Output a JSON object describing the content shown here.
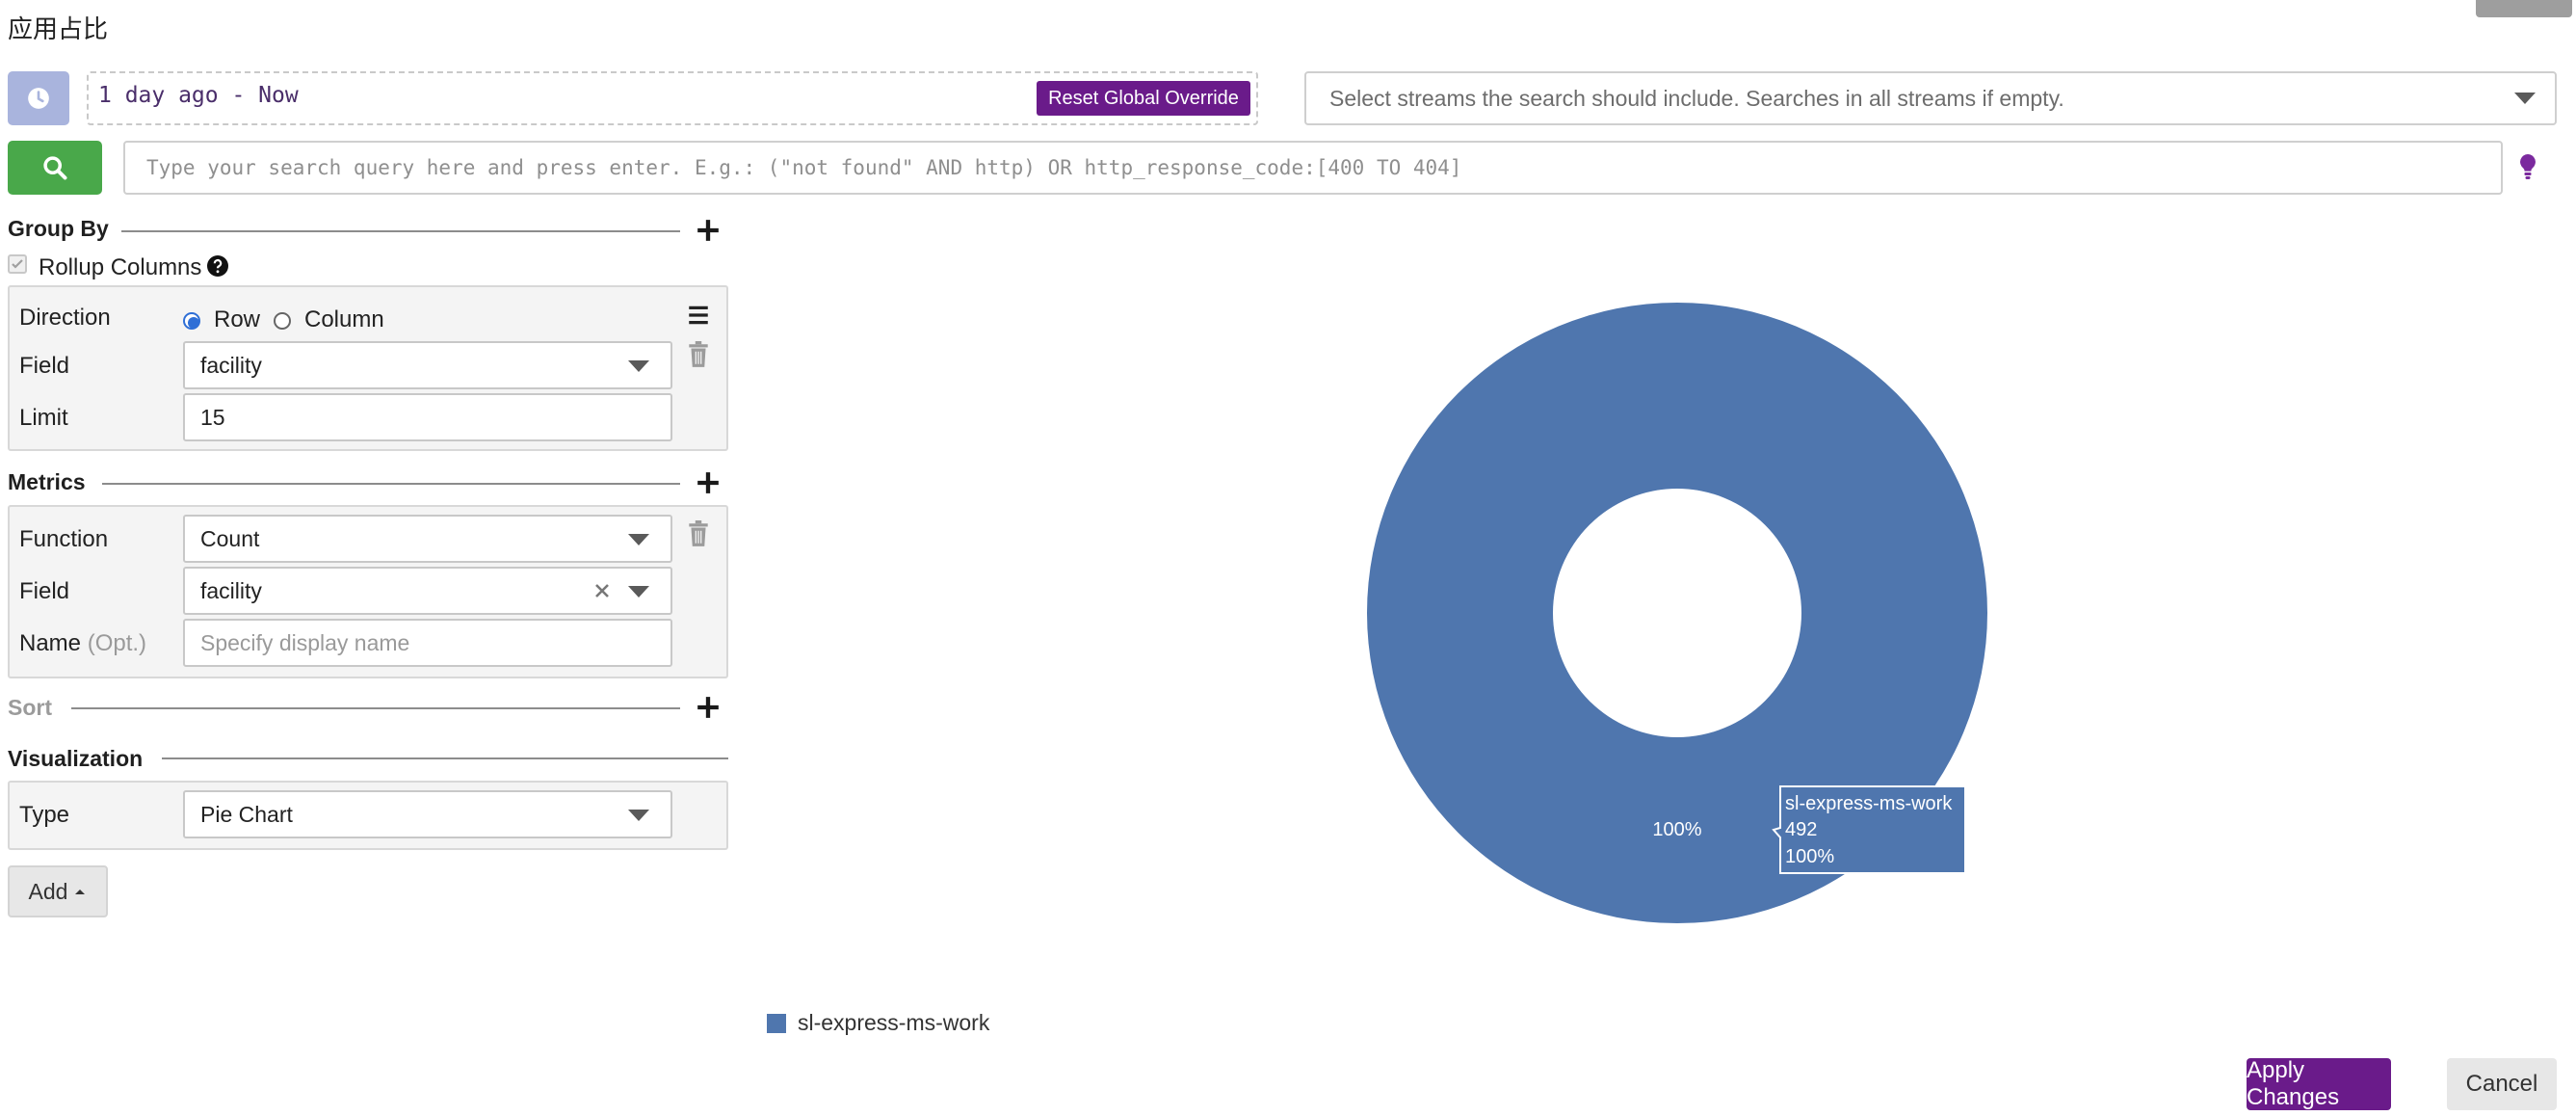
{
  "header": {
    "title": "应用占比"
  },
  "toolbar": {
    "time_range": "1 day ago - Now",
    "reset_label": "Reset Global Override",
    "streams_placeholder": "Select streams the search should include. Searches in all streams if empty.",
    "query_placeholder": "Type your search query here and press enter. E.g.: (\"not found\" AND http) OR http_response_code:[400 TO 404]"
  },
  "group_by": {
    "title": "Group By",
    "rollup_label": "Rollup Columns",
    "direction_label": "Direction",
    "direction_options": [
      "Row",
      "Column"
    ],
    "direction_selected": "Row",
    "field_label": "Field",
    "field_value": "facility",
    "limit_label": "Limit",
    "limit_value": "15"
  },
  "metrics": {
    "title": "Metrics",
    "function_label": "Function",
    "function_value": "Count",
    "field_label": "Field",
    "field_value": "facility",
    "name_label": "Name",
    "name_opt": "(Opt.)",
    "name_placeholder": "Specify display name"
  },
  "sort": {
    "title": "Sort"
  },
  "visualization": {
    "title": "Visualization",
    "type_label": "Type",
    "type_value": "Pie Chart"
  },
  "add_label": "Add",
  "footer": {
    "apply_label": "Apply Changes",
    "cancel_label": "Cancel"
  },
  "chart_data": {
    "type": "pie",
    "donut": true,
    "slices": [
      {
        "label": "sl-express-ms-work",
        "value": 492,
        "percent": "100%"
      }
    ],
    "slice_label": "100%",
    "tooltip": {
      "name": "sl-express-ms-work",
      "value": "492",
      "percent": "100%"
    },
    "legend": [
      {
        "label": "sl-express-ms-work",
        "color": "#4f76ae"
      }
    ],
    "legend_placement": "bottom-left"
  },
  "colors": {
    "accent_purple": "#6a1b8a",
    "search_green": "#49a84a",
    "clock_blue": "#a9b4dd",
    "slice_blue": "#4f76ae"
  },
  "icons": [
    "clock-icon",
    "search-icon",
    "lightbulb-icon",
    "plus-icon",
    "help-icon",
    "hamburger-icon",
    "trash-icon",
    "caret-down-icon",
    "clear-icon"
  ]
}
